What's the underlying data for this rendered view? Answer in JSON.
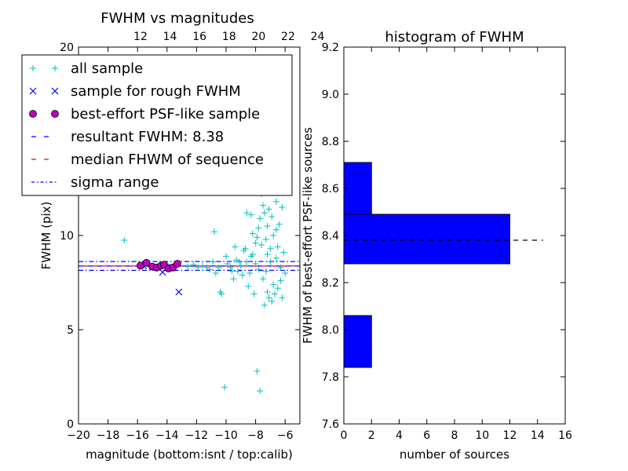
{
  "chart_data": [
    {
      "type": "scatter",
      "title": "FWHM vs magnitudes",
      "xlabel": "magnitude (bottom:isnt / top:calib)",
      "ylabel": "FWHM (pix)",
      "xlim": [
        -20,
        -5
      ],
      "ylim": [
        0,
        20
      ],
      "xticks": [
        -20,
        -18,
        -16,
        -14,
        -12,
        -10,
        -8,
        -6
      ],
      "xtick_labels": [
        "−20",
        "−18",
        "−16",
        "−14",
        "−12",
        "−10",
        "−8",
        "−6"
      ],
      "yticks": [
        0,
        5,
        10,
        20
      ],
      "ytick_labels": [
        "0",
        "5",
        "10",
        "20"
      ],
      "top_xticks": [
        12,
        14,
        16,
        18,
        20,
        22,
        24
      ],
      "top_xtick_labels": [
        "12",
        "14",
        "16",
        "18",
        "20",
        "22",
        "24"
      ],
      "top_axis_offset": 27.8,
      "grid": false,
      "legend_position": "upper-left",
      "series": [
        {
          "name": "all sample",
          "marker": "+",
          "color": "#00bfbf",
          "points": [
            [
              -16.9,
              9.75
            ],
            [
              -15.6,
              8.4
            ],
            [
              -15.3,
              8.5
            ],
            [
              -14.9,
              8.3
            ],
            [
              -14.4,
              8.45
            ],
            [
              -13.9,
              8.35
            ],
            [
              -13.4,
              8.5
            ],
            [
              -12.6,
              8.35
            ],
            [
              -12.2,
              8.45
            ],
            [
              -11.9,
              8.3
            ],
            [
              -11.6,
              8.4
            ],
            [
              -11.3,
              8.3
            ],
            [
              -11.1,
              8.2
            ],
            [
              -10.9,
              8.6
            ],
            [
              -10.8,
              10.2
            ],
            [
              -10.7,
              8.0
            ],
            [
              -10.5,
              8.3
            ],
            [
              -10.4,
              7.0
            ],
            [
              -10.3,
              6.9
            ],
            [
              -10.1,
              1.95
            ],
            [
              -10.0,
              8.9
            ],
            [
              -9.9,
              8.5
            ],
            [
              -9.7,
              8.3
            ],
            [
              -9.6,
              8.1
            ],
            [
              -9.5,
              7.7
            ],
            [
              -9.4,
              9.4
            ],
            [
              -9.3,
              8.7
            ],
            [
              -9.2,
              8.1
            ],
            [
              -9.0,
              8.4
            ],
            [
              -8.9,
              7.9
            ],
            [
              -8.8,
              9.2
            ],
            [
              -8.7,
              9.3
            ],
            [
              -8.6,
              11.2
            ],
            [
              -8.6,
              8.6
            ],
            [
              -8.5,
              7.3
            ],
            [
              -8.4,
              8.0
            ],
            [
              -8.3,
              8.9
            ],
            [
              -8.3,
              11.1
            ],
            [
              -8.2,
              9.0
            ],
            [
              -8.1,
              6.9
            ],
            [
              -8.0,
              8.5
            ],
            [
              -7.9,
              2.8
            ],
            [
              -7.9,
              9.9
            ],
            [
              -7.8,
              8.2
            ],
            [
              -7.7,
              1.75
            ],
            [
              -7.7,
              10.9
            ],
            [
              -7.6,
              9.5
            ],
            [
              -7.5,
              11.6
            ],
            [
              -7.5,
              7.7
            ],
            [
              -7.4,
              11.2
            ],
            [
              -7.3,
              9.8
            ],
            [
              -7.3,
              8.1
            ],
            [
              -7.2,
              7.0
            ],
            [
              -7.2,
              10.5
            ],
            [
              -7.1,
              11.4
            ],
            [
              -7.1,
              6.7
            ],
            [
              -7.0,
              9.3
            ],
            [
              -7.0,
              8.6
            ],
            [
              -6.9,
              11.0
            ],
            [
              -6.8,
              7.4
            ],
            [
              -6.8,
              10.0
            ],
            [
              -6.7,
              6.9
            ],
            [
              -6.6,
              8.8
            ],
            [
              -6.6,
              11.8
            ],
            [
              -6.5,
              7.2
            ],
            [
              -6.5,
              9.4
            ],
            [
              -6.4,
              10.6
            ],
            [
              -6.3,
              8.3
            ],
            [
              -6.2,
              6.7
            ],
            [
              -6.2,
              11.5
            ],
            [
              -6.1,
              9.1
            ],
            [
              -6.0,
              8.0
            ],
            [
              -7.6,
              12.2
            ],
            [
              -7.0,
              12.6
            ],
            [
              -6.7,
              12.4
            ],
            [
              -6.4,
              12.9
            ],
            [
              -8.0,
              9.6
            ],
            [
              -7.8,
              10.4
            ],
            [
              -7.4,
              6.3
            ],
            [
              -6.9,
              6.5
            ],
            [
              -6.3,
              7.6
            ],
            [
              -6.6,
              10.3
            ],
            [
              -7.2,
              9.0
            ],
            [
              -8.2,
              10.1
            ],
            [
              -9.1,
              8.6
            ]
          ]
        },
        {
          "name": "sample for rough FWHM",
          "marker": "x",
          "color": "#0000ff",
          "points": [
            [
              -14.3,
              8.05
            ],
            [
              -13.2,
              7.0
            ],
            [
              -15.6,
              8.4
            ],
            [
              -14.0,
              8.3
            ]
          ]
        },
        {
          "name": "best-effort PSF-like sample",
          "marker": "o",
          "color": "#bf00bf",
          "points": [
            [
              -15.8,
              8.4
            ],
            [
              -15.4,
              8.55
            ],
            [
              -15.0,
              8.35
            ],
            [
              -14.7,
              8.3
            ],
            [
              -14.4,
              8.4
            ],
            [
              -14.2,
              8.45
            ],
            [
              -13.9,
              8.25
            ],
            [
              -13.6,
              8.3
            ],
            [
              -13.3,
              8.5
            ]
          ]
        }
      ],
      "lines": [
        {
          "name": "resultant FWHM: 8.38",
          "y": 8.38,
          "style": "dashed",
          "color": "#0000ff"
        },
        {
          "name": "median FHWM of sequence",
          "y": 8.38,
          "style": "dashed",
          "color": "#ff0000"
        },
        {
          "name": "sigma range",
          "y": [
            8.15,
            8.62
          ],
          "style": "dashdot",
          "color": "#0000ff"
        }
      ]
    },
    {
      "type": "bar",
      "orientation": "horizontal",
      "title": "histogram of FWHM",
      "xlabel": "number of sources",
      "ylabel": "FWHM of best-effort PSF-like sources",
      "xlim": [
        0,
        16
      ],
      "ylim": [
        7.6,
        9.2
      ],
      "xticks": [
        0,
        2,
        4,
        6,
        8,
        10,
        12,
        14,
        16
      ],
      "xtick_labels": [
        "0",
        "2",
        "4",
        "6",
        "8",
        "10",
        "12",
        "14",
        "16"
      ],
      "yticks": [
        7.6,
        7.8,
        8.0,
        8.2,
        8.4,
        8.6,
        8.8,
        9.0,
        9.2
      ],
      "ytick_labels": [
        "7.6",
        "7.8",
        "8.0",
        "8.2",
        "8.4",
        "8.6",
        "8.8",
        "9.0",
        "9.2"
      ],
      "grid": false,
      "bar_color": "#0000ff",
      "bins": [
        {
          "y0": 7.84,
          "y1": 8.06,
          "count": 2
        },
        {
          "y0": 8.06,
          "y1": 8.28,
          "count": 0
        },
        {
          "y0": 8.28,
          "y1": 8.49,
          "count": 12
        },
        {
          "y0": 8.49,
          "y1": 8.71,
          "count": 2
        }
      ],
      "reference_line": {
        "y": 8.38,
        "x_range": [
          0,
          14.4
        ],
        "style": "dashed",
        "color": "#000000"
      }
    }
  ]
}
